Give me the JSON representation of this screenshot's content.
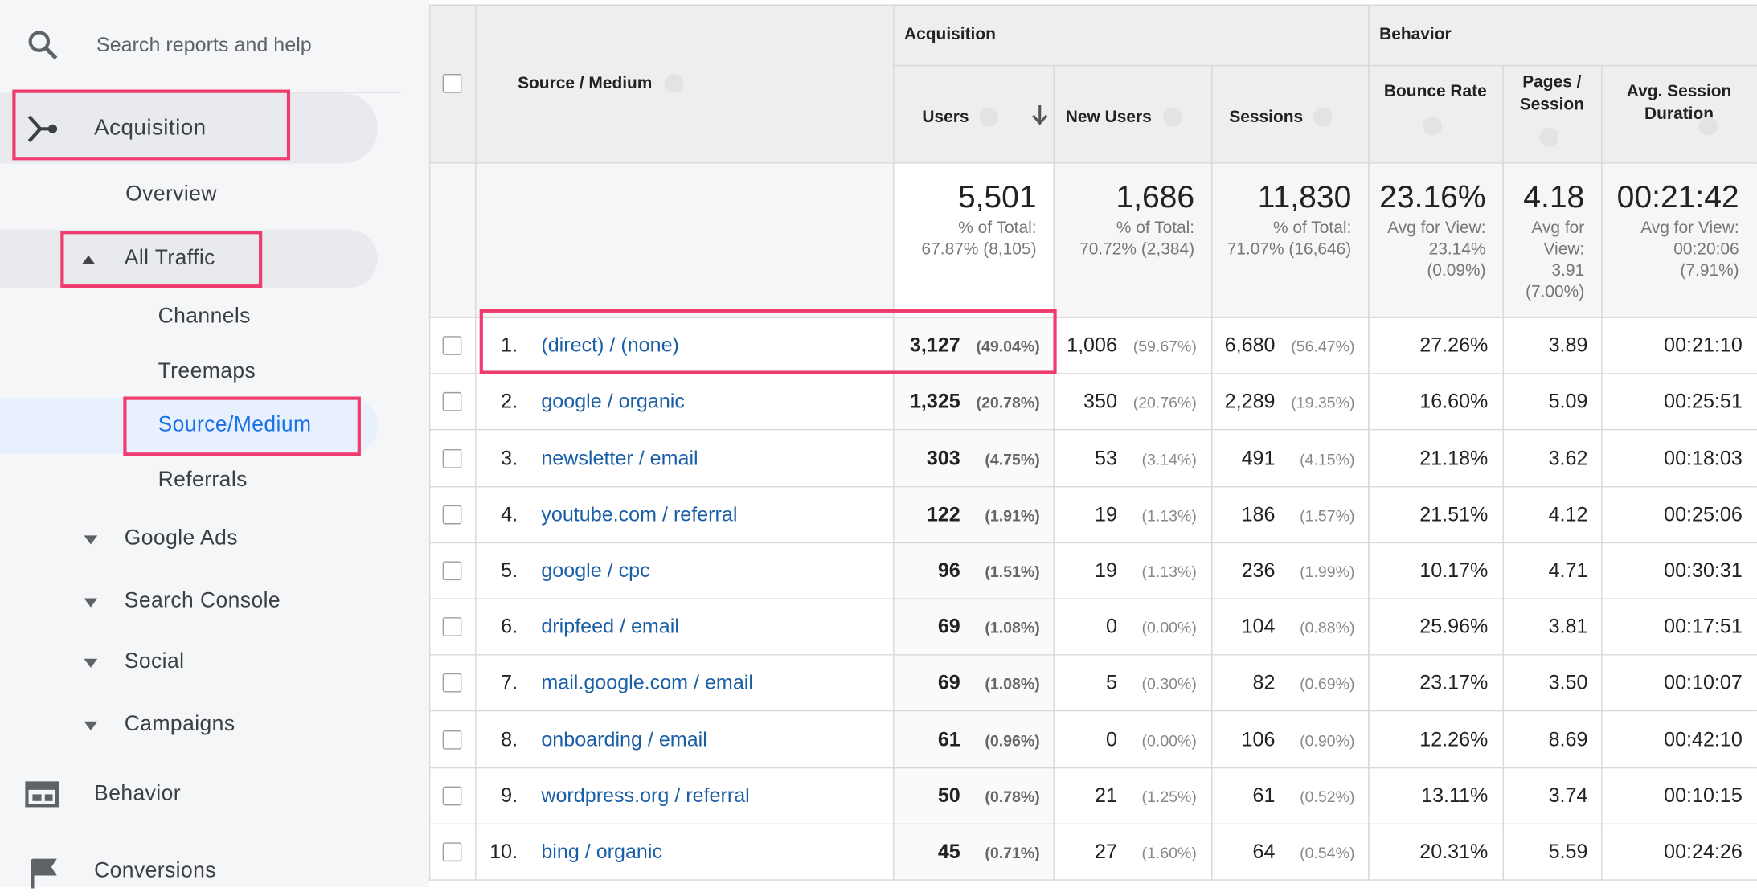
{
  "sidebar": {
    "search_placeholder": "Search reports and help",
    "items": [
      "Acquisition",
      "Overview",
      "All Traffic",
      "Channels",
      "Treemaps",
      "Source/Medium",
      "Referrals",
      "Google Ads",
      "Search Console",
      "Social",
      "Campaigns",
      "Behavior",
      "Conversions"
    ]
  },
  "table": {
    "group_headers": [
      "Acquisition",
      "Behavior"
    ],
    "columns": [
      "Source / Medium",
      "Users",
      "New Users",
      "Sessions",
      "Bounce Rate",
      "Pages / Session",
      "Avg. Session Duration"
    ],
    "totals": [
      {
        "value": "5,501",
        "lines": [
          "% of Total:",
          "67.87% (8,105)"
        ]
      },
      {
        "value": "1,686",
        "lines": [
          "% of Total:",
          "70.72% (2,384)"
        ]
      },
      {
        "value": "11,830",
        "lines": [
          "% of Total:",
          "71.07% (16,646)"
        ]
      },
      {
        "value": "23.16%",
        "lines": [
          "Avg for View:",
          "23.14%",
          "(0.09%)"
        ]
      },
      {
        "value": "4.18",
        "lines": [
          "Avg for View:",
          "3.91",
          "(7.00%)"
        ]
      },
      {
        "value": "00:21:42",
        "lines": [
          "Avg for View:",
          "00:20:06",
          "(7.91%)"
        ]
      }
    ],
    "rows": [
      [
        "1.",
        "(direct) / (none)",
        "3,127",
        "(49.04%)",
        "1,006",
        "(59.67%)",
        "6,680",
        "(56.47%)",
        "27.26%",
        "3.89",
        "00:21:10"
      ],
      [
        "2.",
        "google / organic",
        "1,325",
        "(20.78%)",
        "350",
        "(20.76%)",
        "2,289",
        "(19.35%)",
        "16.60%",
        "5.09",
        "00:25:51"
      ],
      [
        "3.",
        "newsletter / email",
        "303",
        "(4.75%)",
        "53",
        "(3.14%)",
        "491",
        "(4.15%)",
        "21.18%",
        "3.62",
        "00:18:03"
      ],
      [
        "4.",
        "youtube.com / referral",
        "122",
        "(1.91%)",
        "19",
        "(1.13%)",
        "186",
        "(1.57%)",
        "21.51%",
        "4.12",
        "00:25:06"
      ],
      [
        "5.",
        "google / cpc",
        "96",
        "(1.51%)",
        "19",
        "(1.13%)",
        "236",
        "(1.99%)",
        "10.17%",
        "4.71",
        "00:30:31"
      ],
      [
        "6.",
        "dripfeed / email",
        "69",
        "(1.08%)",
        "0",
        "(0.00%)",
        "104",
        "(0.88%)",
        "25.96%",
        "3.81",
        "00:17:51"
      ],
      [
        "7.",
        "mail.google.com / email",
        "69",
        "(1.08%)",
        "5",
        "(0.30%)",
        "82",
        "(0.69%)",
        "23.17%",
        "3.50",
        "00:10:07"
      ],
      [
        "8.",
        "onboarding / email",
        "61",
        "(0.96%)",
        "0",
        "(0.00%)",
        "106",
        "(0.90%)",
        "12.26%",
        "8.69",
        "00:42:10"
      ],
      [
        "9.",
        "wordpress.org / referral",
        "50",
        "(0.78%)",
        "21",
        "(1.25%)",
        "61",
        "(0.52%)",
        "13.11%",
        "3.74",
        "00:10:15"
      ],
      [
        "10.",
        "bing / organic",
        "45",
        "(0.71%)",
        "27",
        "(1.60%)",
        "64",
        "(0.54%)",
        "20.31%",
        "5.59",
        "00:24:26"
      ]
    ]
  }
}
